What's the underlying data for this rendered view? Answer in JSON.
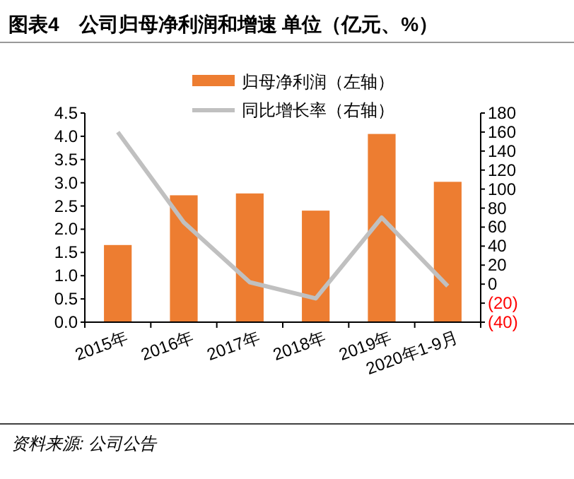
{
  "chart_data": {
    "type": "bar",
    "title": "图表4　公司归母净利润和增速 单位（亿元、%）",
    "categories": [
      "2015年",
      "2016年",
      "2017年",
      "2018年",
      "2019年",
      "2020年1-9月"
    ],
    "series": [
      {
        "name": "归母净利润（左轴）",
        "color": "#ed7d31",
        "values": [
          1.66,
          2.73,
          2.77,
          2.4,
          4.05,
          3.02
        ]
      },
      {
        "name": "同比增长率（右轴）",
        "type": "line",
        "axis": "y2",
        "color": "#c0c0c0",
        "values": [
          160,
          65,
          2,
          -15,
          70,
          -2
        ]
      }
    ],
    "ylim": [
      0,
      4.5
    ],
    "yticks": [
      {
        "value": 0,
        "label": "0.0"
      },
      {
        "value": 0.5,
        "label": "0.5"
      },
      {
        "value": 1,
        "label": "1.0"
      },
      {
        "value": 1.5,
        "label": "1.5"
      },
      {
        "value": 2,
        "label": "2.0"
      },
      {
        "value": 2.5,
        "label": "2.5"
      },
      {
        "value": 3,
        "label": "3.0"
      },
      {
        "value": 3.5,
        "label": "3.5"
      },
      {
        "value": 4,
        "label": "4.0"
      },
      {
        "value": 4.5,
        "label": "4.5"
      }
    ],
    "y2lim": [
      -40,
      180
    ],
    "y2ticks": [
      {
        "value": -40,
        "label": "(40)"
      },
      {
        "value": -20,
        "label": "(20)"
      },
      0,
      20,
      40,
      60,
      80,
      100,
      120,
      140,
      160,
      180
    ],
    "legend": "top",
    "grid": false,
    "marker": "none",
    "annotations": [
      "资料来源: 公司公告"
    ]
  }
}
